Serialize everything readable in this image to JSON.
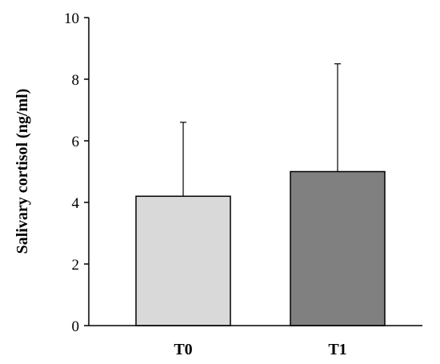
{
  "chart_data": {
    "type": "bar",
    "title": "",
    "xlabel": "",
    "ylabel": "Salivary cortisol (ng/ml)",
    "categories": [
      "T0",
      "T1"
    ],
    "values": [
      4.2,
      5.0
    ],
    "error_bars_upper": [
      2.4,
      3.5
    ],
    "ylim": [
      0,
      10
    ],
    "yticks": [
      0,
      2,
      4,
      6,
      8,
      10
    ],
    "ytick_labels": [
      "0",
      "2",
      "4",
      "6",
      "8",
      "10"
    ],
    "bar_colors": [
      "#d9d9d9",
      "#808080"
    ],
    "grid": false,
    "legend": "none"
  }
}
